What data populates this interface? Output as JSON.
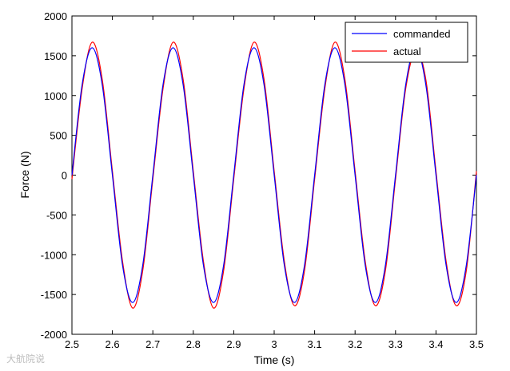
{
  "chart_data": {
    "type": "line",
    "title": "",
    "xlabel": "Time (s)",
    "ylabel": "Force (N)",
    "xlim": [
      2.5,
      3.5
    ],
    "ylim": [
      -2000,
      2000
    ],
    "xticks": [
      2.5,
      2.6,
      2.7,
      2.8,
      2.9,
      3.0,
      3.1,
      3.2,
      3.3,
      3.4,
      3.5
    ],
    "xtick_labels": [
      "2.5",
      "2.6",
      "2.7",
      "2.8",
      "2.9",
      "3",
      "3.1",
      "3.2",
      "3.3",
      "3.4",
      "3.5"
    ],
    "yticks": [
      -2000,
      -1500,
      -1000,
      -500,
      0,
      500,
      1000,
      1500,
      2000
    ],
    "ytick_labels": [
      "-2000",
      "-1500",
      "-1000",
      "-500",
      "0",
      "500",
      "1000",
      "1500",
      "2000"
    ],
    "grid": false,
    "legend_position": "top-right",
    "series": [
      {
        "name": "commanded",
        "color": "#0000ff",
        "x": [
          2.5,
          2.525,
          2.55,
          2.575,
          2.6,
          2.625,
          2.65,
          2.675,
          2.7,
          2.725,
          2.75,
          2.775,
          2.8,
          2.825,
          2.85,
          2.875,
          2.9,
          2.925,
          2.95,
          2.975,
          3.0,
          3.025,
          3.05,
          3.075,
          3.1,
          3.125,
          3.15,
          3.175,
          3.2,
          3.225,
          3.25,
          3.275,
          3.3,
          3.325,
          3.35,
          3.375,
          3.4,
          3.425,
          3.45,
          3.475,
          3.5
        ],
        "y": [
          0,
          1131,
          1600,
          1131,
          0,
          -1131,
          -1600,
          -1131,
          0,
          1131,
          1600,
          1131,
          0,
          -1131,
          -1600,
          -1131,
          0,
          1131,
          1600,
          1131,
          0,
          -1131,
          -1600,
          -1131,
          0,
          1131,
          1600,
          1131,
          0,
          -1131,
          -1600,
          -1131,
          0,
          1131,
          1600,
          1131,
          0,
          -1131,
          -1600,
          -1131,
          0
        ]
      },
      {
        "name": "actual",
        "color": "#ff0000",
        "x": [
          2.5,
          2.525,
          2.55,
          2.575,
          2.6,
          2.625,
          2.65,
          2.675,
          2.7,
          2.725,
          2.75,
          2.775,
          2.8,
          2.825,
          2.85,
          2.875,
          2.9,
          2.925,
          2.95,
          2.975,
          3.0,
          3.025,
          3.05,
          3.075,
          3.1,
          3.125,
          3.15,
          3.175,
          3.2,
          3.225,
          3.25,
          3.275,
          3.3,
          3.325,
          3.35,
          3.375,
          3.4,
          3.425,
          3.45,
          3.475,
          3.5
        ],
        "y": [
          -50,
          1080,
          1670,
          1200,
          50,
          -1080,
          -1670,
          -1200,
          -50,
          1080,
          1670,
          1200,
          50,
          -1080,
          -1670,
          -1200,
          -50,
          1080,
          1670,
          1200,
          50,
          -1080,
          -1640,
          -1200,
          -50,
          1080,
          1670,
          1200,
          50,
          -1080,
          -1640,
          -1200,
          -50,
          1080,
          1560,
          1200,
          50,
          -1080,
          -1640,
          -1200,
          50
        ]
      }
    ]
  },
  "watermark": "大航院说"
}
